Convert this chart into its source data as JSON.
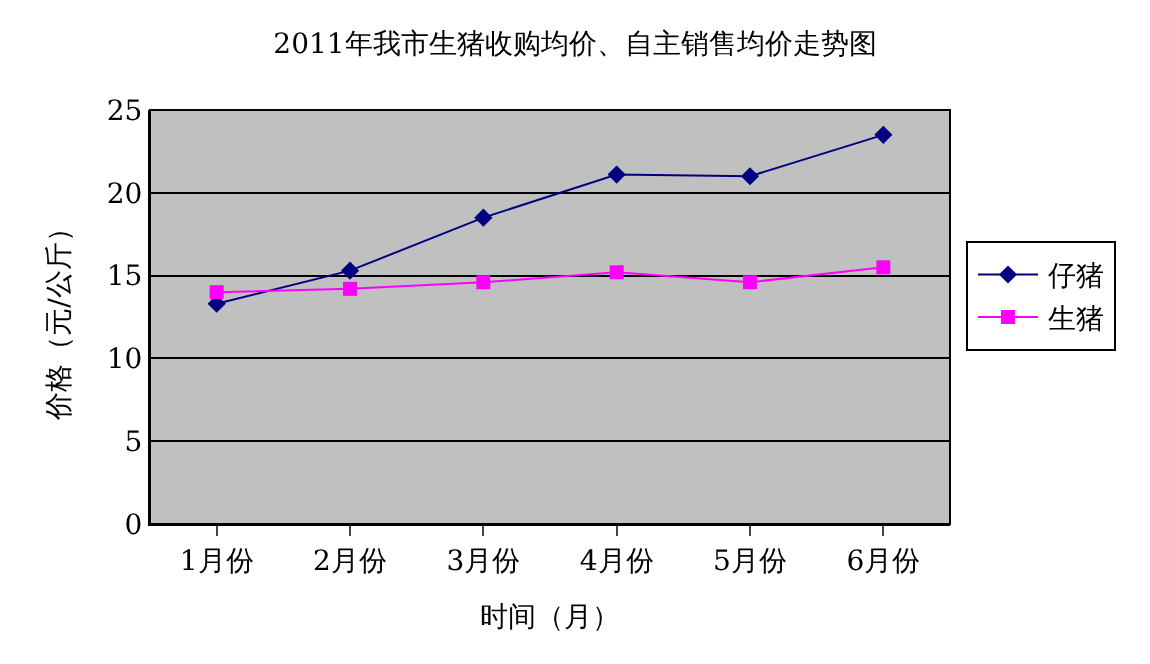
{
  "chart_data": {
    "type": "line",
    "title": "2011年我市生猪收购均价、自主销售均价走势图",
    "xlabel": "时间（月）",
    "ylabel": "价格（元/公斤）",
    "categories": [
      "1月份",
      "2月份",
      "3月份",
      "4月份",
      "5月份",
      "6月份"
    ],
    "series": [
      {
        "name": "仔猪",
        "color": "#000080",
        "marker": "diamond",
        "values": [
          13.3,
          15.3,
          18.5,
          21.1,
          21.0,
          23.5
        ]
      },
      {
        "name": "生猪",
        "color": "#ff00ff",
        "marker": "square",
        "values": [
          14.0,
          14.2,
          14.6,
          15.2,
          14.6,
          15.5
        ]
      }
    ],
    "ylim": [
      0,
      25
    ],
    "yticks": [
      0,
      5,
      10,
      15,
      20,
      25
    ],
    "grid": "y",
    "legend": "right"
  }
}
